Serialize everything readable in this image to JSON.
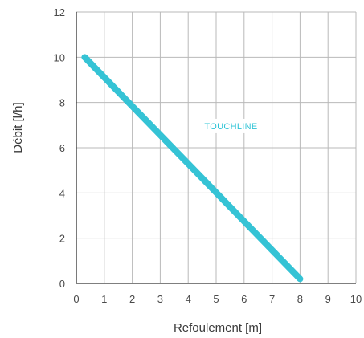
{
  "chart_data": {
    "type": "line",
    "xlabel": "Refoulement [m]",
    "ylabel": "Débit [l/h]",
    "xlim": [
      0,
      10
    ],
    "ylim": [
      0,
      12
    ],
    "xticks": [
      "0",
      "1",
      "2",
      "3",
      "4",
      "5",
      "6",
      "7",
      "8",
      "9",
      "10"
    ],
    "yticks": [
      "0",
      "2",
      "4",
      "6",
      "8",
      "10",
      "12"
    ],
    "grid": true,
    "series": [
      {
        "name": "TOUCHLINE",
        "color": "#35c3d5",
        "x": [
          0.3,
          8.0
        ],
        "y": [
          10.0,
          0.2
        ]
      }
    ]
  }
}
